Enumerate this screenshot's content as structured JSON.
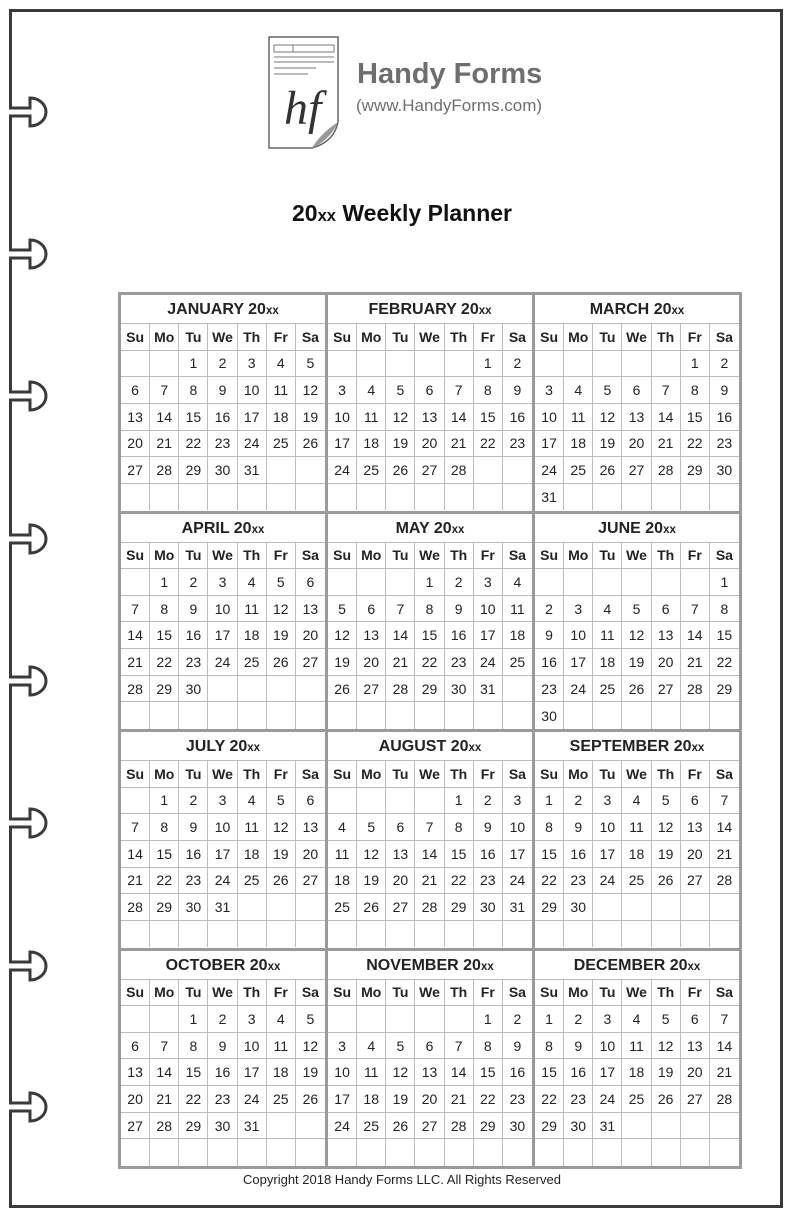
{
  "brand": {
    "name": "Handy Forms",
    "url": "(www.HandyForms.com)",
    "logo_text": "hf"
  },
  "title": {
    "year_prefix": "20",
    "year_suffix": "xx",
    "label": "Weekly Planner"
  },
  "weekdays": [
    "Su",
    "Mo",
    "Tu",
    "We",
    "Th",
    "Fr",
    "Sa"
  ],
  "months": [
    {
      "name": "JANUARY",
      "year_prefix": "20",
      "year_suffix": "xx",
      "cells": [
        "",
        "",
        "1",
        "2",
        "3",
        "4",
        "5",
        "6",
        "7",
        "8",
        "9",
        "10",
        "11",
        "12",
        "13",
        "14",
        "15",
        "16",
        "17",
        "18",
        "19",
        "20",
        "21",
        "22",
        "23",
        "24",
        "25",
        "26",
        "27",
        "28",
        "29",
        "30",
        "31",
        "",
        "",
        "",
        "",
        "",
        "",
        "",
        "",
        ""
      ]
    },
    {
      "name": "FEBRUARY",
      "year_prefix": "20",
      "year_suffix": "xx",
      "cells": [
        "",
        "",
        "",
        "",
        "",
        "1",
        "2",
        "3",
        "4",
        "5",
        "6",
        "7",
        "8",
        "9",
        "10",
        "11",
        "12",
        "13",
        "14",
        "15",
        "16",
        "17",
        "18",
        "19",
        "20",
        "21",
        "22",
        "23",
        "24",
        "25",
        "26",
        "27",
        "28",
        "",
        "",
        "",
        "",
        "",
        "",
        "",
        "",
        ""
      ]
    },
    {
      "name": "MARCH",
      "year_prefix": "20",
      "year_suffix": "xx",
      "cells": [
        "",
        "",
        "",
        "",
        "",
        "1",
        "2",
        "3",
        "4",
        "5",
        "6",
        "7",
        "8",
        "9",
        "10",
        "11",
        "12",
        "13",
        "14",
        "15",
        "16",
        "17",
        "18",
        "19",
        "20",
        "21",
        "22",
        "23",
        "24",
        "25",
        "26",
        "27",
        "28",
        "29",
        "30",
        "31",
        "",
        "",
        "",
        "",
        "",
        ""
      ]
    },
    {
      "name": "APRIL",
      "year_prefix": "20",
      "year_suffix": "xx",
      "cells": [
        "",
        "1",
        "2",
        "3",
        "4",
        "5",
        "6",
        "7",
        "8",
        "9",
        "10",
        "11",
        "12",
        "13",
        "14",
        "15",
        "16",
        "17",
        "18",
        "19",
        "20",
        "21",
        "22",
        "23",
        "24",
        "25",
        "26",
        "27",
        "28",
        "29",
        "30",
        "",
        "",
        "",
        "",
        "",
        "",
        "",
        "",
        "",
        "",
        ""
      ]
    },
    {
      "name": "MAY",
      "year_prefix": "20",
      "year_suffix": "xx",
      "cells": [
        "",
        "",
        "",
        "1",
        "2",
        "3",
        "4",
        "5",
        "6",
        "7",
        "8",
        "9",
        "10",
        "11",
        "12",
        "13",
        "14",
        "15",
        "16",
        "17",
        "18",
        "19",
        "20",
        "21",
        "22",
        "23",
        "24",
        "25",
        "26",
        "27",
        "28",
        "29",
        "30",
        "31",
        "",
        "",
        "",
        "",
        "",
        "",
        "",
        ""
      ]
    },
    {
      "name": "JUNE",
      "year_prefix": "20",
      "year_suffix": "xx",
      "cells": [
        "",
        "",
        "",
        "",
        "",
        "",
        "1",
        "2",
        "3",
        "4",
        "5",
        "6",
        "7",
        "8",
        "9",
        "10",
        "11",
        "12",
        "13",
        "14",
        "15",
        "16",
        "17",
        "18",
        "19",
        "20",
        "21",
        "22",
        "23",
        "24",
        "25",
        "26",
        "27",
        "28",
        "29",
        "30",
        "",
        "",
        "",
        "",
        "",
        ""
      ]
    },
    {
      "name": "JULY",
      "year_prefix": "20",
      "year_suffix": "xx",
      "cells": [
        "",
        "1",
        "2",
        "3",
        "4",
        "5",
        "6",
        "7",
        "8",
        "9",
        "10",
        "11",
        "12",
        "13",
        "14",
        "15",
        "16",
        "17",
        "18",
        "19",
        "20",
        "21",
        "22",
        "23",
        "24",
        "25",
        "26",
        "27",
        "28",
        "29",
        "30",
        "31",
        "",
        "",
        "",
        "",
        "",
        "",
        "",
        "",
        "",
        ""
      ]
    },
    {
      "name": "AUGUST",
      "year_prefix": "20",
      "year_suffix": "xx",
      "cells": [
        "",
        "",
        "",
        "",
        "1",
        "2",
        "3",
        "4",
        "5",
        "6",
        "7",
        "8",
        "9",
        "10",
        "11",
        "12",
        "13",
        "14",
        "15",
        "16",
        "17",
        "18",
        "19",
        "20",
        "21",
        "22",
        "23",
        "24",
        "25",
        "26",
        "27",
        "28",
        "29",
        "30",
        "31",
        "",
        "",
        "",
        "",
        "",
        "",
        ""
      ]
    },
    {
      "name": "SEPTEMBER",
      "year_prefix": "20",
      "year_suffix": "xx",
      "cells": [
        "1",
        "2",
        "3",
        "4",
        "5",
        "6",
        "7",
        "8",
        "9",
        "10",
        "11",
        "12",
        "13",
        "14",
        "15",
        "16",
        "17",
        "18",
        "19",
        "20",
        "21",
        "22",
        "23",
        "24",
        "25",
        "26",
        "27",
        "28",
        "29",
        "30",
        "",
        "",
        "",
        "",
        "",
        "",
        "",
        "",
        "",
        "",
        "",
        ""
      ]
    },
    {
      "name": "OCTOBER",
      "year_prefix": "20",
      "year_suffix": "xx",
      "cells": [
        "",
        "",
        "1",
        "2",
        "3",
        "4",
        "5",
        "6",
        "7",
        "8",
        "9",
        "10",
        "11",
        "12",
        "13",
        "14",
        "15",
        "16",
        "17",
        "18",
        "19",
        "20",
        "21",
        "22",
        "23",
        "24",
        "25",
        "26",
        "27",
        "28",
        "29",
        "30",
        "31",
        "",
        "",
        "",
        "",
        "",
        "",
        "",
        "",
        ""
      ]
    },
    {
      "name": "NOVEMBER",
      "year_prefix": "20",
      "year_suffix": "xx",
      "cells": [
        "",
        "",
        "",
        "",
        "",
        "1",
        "2",
        "3",
        "4",
        "5",
        "6",
        "7",
        "8",
        "9",
        "10",
        "11",
        "12",
        "13",
        "14",
        "15",
        "16",
        "17",
        "18",
        "19",
        "20",
        "21",
        "22",
        "23",
        "24",
        "25",
        "26",
        "27",
        "28",
        "29",
        "30",
        "",
        "",
        "",
        "",
        "",
        "",
        ""
      ]
    },
    {
      "name": "DECEMBER",
      "year_prefix": "20",
      "year_suffix": "xx",
      "cells": [
        "1",
        "2",
        "3",
        "4",
        "5",
        "6",
        "7",
        "8",
        "9",
        "10",
        "11",
        "12",
        "13",
        "14",
        "15",
        "16",
        "17",
        "18",
        "19",
        "20",
        "21",
        "22",
        "23",
        "24",
        "25",
        "26",
        "27",
        "28",
        "29",
        "30",
        "31",
        "",
        "",
        "",
        "",
        "",
        "",
        "",
        "",
        "",
        "",
        ""
      ]
    }
  ],
  "footer": {
    "copyright": "Copyright 2018 Handy Forms LLC. All Rights Reserved"
  },
  "colors": {
    "border": "#3a3a3a",
    "grid": "#9a9a9a",
    "brand": "#6e6e6e"
  }
}
